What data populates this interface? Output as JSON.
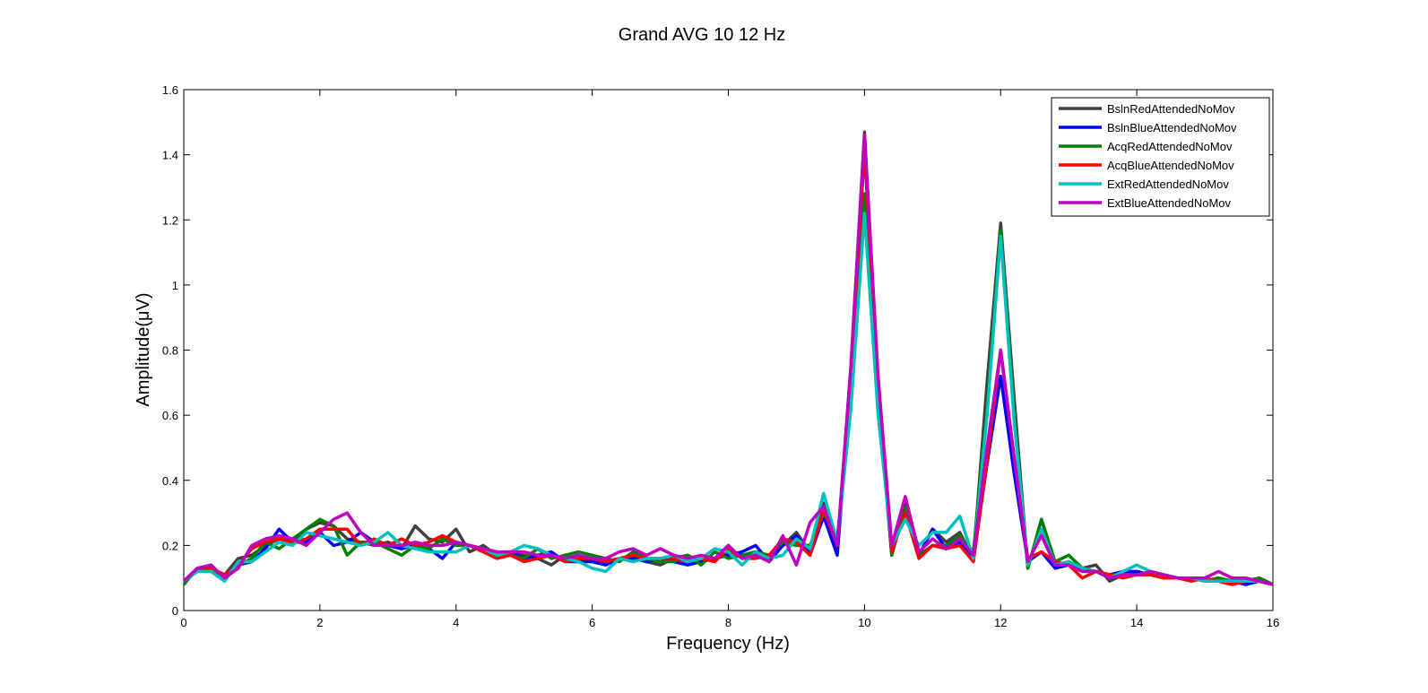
{
  "chart_data": {
    "type": "line",
    "title": "Grand AVG 10  12 Hz",
    "xlabel": "Frequency (Hz)",
    "ylabel": "Amplitude(μV)",
    "xlim": [
      0,
      16
    ],
    "ylim": [
      0,
      1.6
    ],
    "xticks": [
      0,
      2,
      4,
      6,
      8,
      10,
      12,
      14,
      16
    ],
    "yticks": [
      0,
      0.2,
      0.4,
      0.6,
      0.8,
      1,
      1.2,
      1.4,
      1.6
    ],
    "ytick_labels": [
      "0",
      "0.2",
      "0.4",
      "0.6",
      "0.8",
      "1",
      "1.2",
      "1.4",
      "1.6"
    ],
    "grid": false,
    "legend_position": "top-right",
    "x": [
      0,
      0.2,
      0.4,
      0.6,
      0.8,
      1.0,
      1.2,
      1.4,
      1.6,
      1.8,
      2.0,
      2.2,
      2.4,
      2.6,
      2.8,
      3.0,
      3.2,
      3.4,
      3.6,
      3.8,
      4.0,
      4.2,
      4.4,
      4.6,
      4.8,
      5.0,
      5.2,
      5.4,
      5.6,
      5.8,
      6.0,
      6.2,
      6.4,
      6.6,
      6.8,
      7.0,
      7.2,
      7.4,
      7.6,
      7.8,
      8.0,
      8.2,
      8.4,
      8.6,
      8.8,
      9.0,
      9.2,
      9.4,
      9.6,
      9.8,
      10.0,
      10.2,
      10.4,
      10.6,
      10.8,
      11.0,
      11.2,
      11.4,
      11.6,
      11.8,
      12.0,
      12.2,
      12.4,
      12.6,
      12.8,
      13.0,
      13.2,
      13.4,
      13.6,
      13.8,
      14.0,
      14.2,
      14.4,
      14.6,
      14.8,
      15.0,
      15.2,
      15.4,
      15.6,
      15.8,
      16.0
    ],
    "series": [
      {
        "name": "BslnRedAttendedNoMov",
        "color": "#404040",
        "values": [
          0.08,
          0.13,
          0.12,
          0.11,
          0.16,
          0.17,
          0.2,
          0.22,
          0.21,
          0.25,
          0.27,
          0.26,
          0.22,
          0.21,
          0.2,
          0.21,
          0.19,
          0.26,
          0.22,
          0.21,
          0.25,
          0.18,
          0.2,
          0.17,
          0.18,
          0.17,
          0.16,
          0.14,
          0.17,
          0.15,
          0.16,
          0.15,
          0.16,
          0.17,
          0.15,
          0.14,
          0.16,
          0.17,
          0.15,
          0.16,
          0.18,
          0.17,
          0.18,
          0.16,
          0.2,
          0.24,
          0.18,
          0.33,
          0.19,
          0.75,
          1.47,
          0.7,
          0.18,
          0.35,
          0.17,
          0.25,
          0.21,
          0.24,
          0.16,
          0.7,
          1.19,
          0.65,
          0.13,
          0.28,
          0.14,
          0.15,
          0.13,
          0.14,
          0.09,
          0.11,
          0.12,
          0.11,
          0.1,
          0.1,
          0.1,
          0.09,
          0.1,
          0.09,
          0.09,
          0.1,
          0.08
        ]
      },
      {
        "name": "BslnBlueAttendedNoMov",
        "color": "#0000ff",
        "values": [
          0.09,
          0.13,
          0.12,
          0.1,
          0.14,
          0.15,
          0.19,
          0.25,
          0.21,
          0.21,
          0.24,
          0.2,
          0.21,
          0.24,
          0.21,
          0.2,
          0.19,
          0.2,
          0.19,
          0.16,
          0.21,
          0.2,
          0.18,
          0.17,
          0.18,
          0.16,
          0.17,
          0.18,
          0.15,
          0.15,
          0.15,
          0.14,
          0.16,
          0.16,
          0.15,
          0.16,
          0.15,
          0.14,
          0.15,
          0.16,
          0.17,
          0.18,
          0.2,
          0.15,
          0.2,
          0.23,
          0.17,
          0.29,
          0.17,
          0.7,
          1.42,
          0.65,
          0.17,
          0.33,
          0.17,
          0.25,
          0.19,
          0.21,
          0.16,
          0.45,
          0.72,
          0.42,
          0.15,
          0.18,
          0.13,
          0.14,
          0.12,
          0.12,
          0.11,
          0.12,
          0.12,
          0.11,
          0.1,
          0.1,
          0.1,
          0.09,
          0.09,
          0.09,
          0.08,
          0.09,
          0.08
        ]
      },
      {
        "name": "AcqRedAttendedNoMov",
        "color": "#008000",
        "values": [
          0.08,
          0.13,
          0.13,
          0.1,
          0.14,
          0.16,
          0.21,
          0.19,
          0.22,
          0.25,
          0.28,
          0.26,
          0.17,
          0.21,
          0.21,
          0.19,
          0.17,
          0.2,
          0.19,
          0.22,
          0.2,
          0.2,
          0.19,
          0.18,
          0.17,
          0.16,
          0.19,
          0.16,
          0.17,
          0.18,
          0.17,
          0.16,
          0.15,
          0.18,
          0.16,
          0.15,
          0.15,
          0.17,
          0.14,
          0.18,
          0.16,
          0.17,
          0.18,
          0.17,
          0.21,
          0.2,
          0.2,
          0.3,
          0.22,
          0.65,
          1.28,
          0.68,
          0.17,
          0.32,
          0.17,
          0.2,
          0.2,
          0.23,
          0.18,
          0.62,
          1.17,
          0.6,
          0.13,
          0.28,
          0.15,
          0.17,
          0.13,
          0.12,
          0.11,
          0.11,
          0.11,
          0.11,
          0.1,
          0.1,
          0.1,
          0.09,
          0.1,
          0.09,
          0.09,
          0.1,
          0.08
        ]
      },
      {
        "name": "AcqBlueAttendedNoMov",
        "color": "#ff0000",
        "values": [
          0.09,
          0.12,
          0.13,
          0.11,
          0.14,
          0.19,
          0.21,
          0.22,
          0.21,
          0.22,
          0.25,
          0.25,
          0.25,
          0.2,
          0.22,
          0.2,
          0.22,
          0.2,
          0.21,
          0.23,
          0.21,
          0.2,
          0.18,
          0.16,
          0.17,
          0.15,
          0.16,
          0.17,
          0.15,
          0.16,
          0.16,
          0.15,
          0.16,
          0.17,
          0.16,
          0.16,
          0.16,
          0.15,
          0.16,
          0.15,
          0.19,
          0.16,
          0.16,
          0.17,
          0.22,
          0.21,
          0.17,
          0.31,
          0.2,
          0.72,
          1.42,
          0.68,
          0.18,
          0.3,
          0.16,
          0.2,
          0.19,
          0.2,
          0.15,
          0.46,
          0.8,
          0.47,
          0.16,
          0.18,
          0.15,
          0.14,
          0.1,
          0.12,
          0.11,
          0.1,
          0.11,
          0.11,
          0.1,
          0.1,
          0.09,
          0.1,
          0.09,
          0.08,
          0.09,
          0.09,
          0.08
        ]
      },
      {
        "name": "ExtRedAttendedNoMov",
        "color": "#00bfbf",
        "values": [
          0.09,
          0.12,
          0.12,
          0.09,
          0.15,
          0.15,
          0.18,
          0.21,
          0.2,
          0.24,
          0.23,
          0.22,
          0.21,
          0.2,
          0.21,
          0.24,
          0.2,
          0.19,
          0.18,
          0.18,
          0.18,
          0.2,
          0.19,
          0.17,
          0.18,
          0.2,
          0.19,
          0.17,
          0.16,
          0.15,
          0.13,
          0.12,
          0.16,
          0.15,
          0.16,
          0.16,
          0.17,
          0.15,
          0.16,
          0.19,
          0.18,
          0.14,
          0.18,
          0.16,
          0.17,
          0.22,
          0.19,
          0.36,
          0.21,
          0.62,
          1.22,
          0.6,
          0.2,
          0.28,
          0.2,
          0.24,
          0.24,
          0.29,
          0.16,
          0.6,
          1.15,
          0.58,
          0.14,
          0.25,
          0.14,
          0.15,
          0.13,
          0.12,
          0.1,
          0.12,
          0.14,
          0.12,
          0.11,
          0.1,
          0.1,
          0.09,
          0.09,
          0.09,
          0.09,
          0.09,
          0.08
        ]
      },
      {
        "name": "ExtBlueAttendedNoMov",
        "color": "#bf00bf",
        "values": [
          0.09,
          0.13,
          0.14,
          0.1,
          0.13,
          0.2,
          0.22,
          0.23,
          0.22,
          0.2,
          0.24,
          0.28,
          0.3,
          0.24,
          0.2,
          0.2,
          0.2,
          0.21,
          0.2,
          0.2,
          0.21,
          0.2,
          0.19,
          0.18,
          0.18,
          0.18,
          0.17,
          0.17,
          0.16,
          0.17,
          0.16,
          0.16,
          0.18,
          0.19,
          0.17,
          0.19,
          0.17,
          0.16,
          0.17,
          0.16,
          0.2,
          0.16,
          0.17,
          0.15,
          0.23,
          0.14,
          0.27,
          0.32,
          0.2,
          0.75,
          1.46,
          0.72,
          0.2,
          0.35,
          0.18,
          0.22,
          0.19,
          0.22,
          0.17,
          0.5,
          0.8,
          0.47,
          0.15,
          0.23,
          0.14,
          0.14,
          0.12,
          0.12,
          0.1,
          0.11,
          0.11,
          0.12,
          0.11,
          0.1,
          0.1,
          0.1,
          0.12,
          0.1,
          0.1,
          0.09,
          0.08
        ]
      }
    ]
  }
}
